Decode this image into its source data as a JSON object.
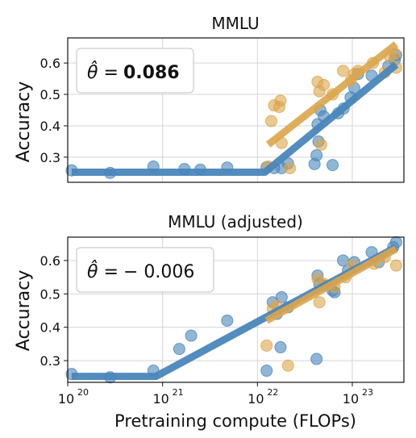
{
  "chart_data": [
    {
      "type": "scatter",
      "title": "MMLU",
      "ylabel": "Accuracy",
      "xscale": "log",
      "xlim": [
        1e+20,
        3.5e+23
      ],
      "ylim": [
        0.22,
        0.68
      ],
      "yticks": [
        "0.3",
        "0.4",
        "0.5",
        "0.6"
      ],
      "ytick_values": [
        0.3,
        0.4,
        0.5,
        0.6
      ],
      "grid": true,
      "annotation": {
        "symbol": "θ̂ =",
        "value": "0.086",
        "bold": true
      },
      "colors": {
        "blue": "#4a86bb",
        "orange": "#dca54b"
      },
      "series": [
        {
          "points": [
            [
              1.1e+20,
              0.258
            ],
            [
              2.8e+20,
              0.25
            ],
            [
              8e+20,
              0.27
            ],
            [
              1.7e+21,
              0.262
            ],
            [
              2.5e+21,
              0.26
            ],
            [
              4.8e+21,
              0.267
            ],
            [
              1.25e+22,
              0.268
            ],
            [
              1.5e+22,
              0.265
            ],
            [
              1.8e+22,
              0.265
            ],
            [
              2.1e+22,
              0.28
            ],
            [
              4e+22,
              0.278
            ],
            [
              4.2e+22,
              0.306
            ],
            [
              4.4e+22,
              0.35
            ],
            [
              4.3e+22,
              0.405
            ],
            [
              4.6e+22,
              0.45
            ],
            [
              5e+22,
              0.43
            ],
            [
              6.2e+22,
              0.275
            ],
            [
              7.1e+22,
              0.44
            ],
            [
              8.1e+22,
              0.455
            ],
            [
              9.6e+22,
              0.49
            ],
            [
              1.05e+23,
              0.52
            ],
            [
              1.15e+23,
              0.565
            ],
            [
              1.6e+23,
              0.56
            ],
            [
              2.4e+23,
              0.59
            ],
            [
              2.8e+23,
              0.61
            ],
            [
              2.9e+23,
              0.625
            ]
          ],
          "fit": [
            [
              1.1e+20,
              0.252
            ],
            [
              1.2e+22,
              0.252
            ],
            [
              2.9e+23,
              0.595
            ]
          ]
        },
        {
          "points": [
            [
              1.4e+22,
              0.415
            ],
            [
              1.5e+22,
              0.465
            ],
            [
              1.7e+22,
              0.46
            ],
            [
              1.75e+22,
              0.48
            ],
            [
              1.8e+22,
              0.345
            ],
            [
              1.3e+22,
              0.27
            ],
            [
              2.2e+22,
              0.265
            ],
            [
              4.3e+22,
              0.54
            ],
            [
              4.5e+22,
              0.51
            ],
            [
              5e+22,
              0.53
            ],
            [
              4.7e+22,
              0.34
            ],
            [
              6.2e+22,
              0.5
            ],
            [
              8e+22,
              0.575
            ],
            [
              9.7e+22,
              0.545
            ],
            [
              1.05e+23,
              0.565
            ],
            [
              1.15e+23,
              0.575
            ],
            [
              1.65e+23,
              0.6
            ],
            [
              2.2e+23,
              0.57
            ],
            [
              2.5e+23,
              0.62
            ],
            [
              2.8e+23,
              0.63
            ],
            [
              2.9e+23,
              0.585
            ]
          ],
          "fit": [
            [
              1.3e+22,
              0.34
            ],
            [
              2.9e+23,
              0.66
            ]
          ]
        }
      ]
    },
    {
      "type": "scatter",
      "title": "MMLU (adjusted)",
      "xlabel": "Pretraining compute (FLOPs)",
      "ylabel": "Accuracy",
      "xscale": "log",
      "xlim": [
        1e+20,
        3.5e+23
      ],
      "ylim": [
        0.235,
        0.67
      ],
      "xticks": [
        "10",
        "10",
        "10",
        "10"
      ],
      "xtick_exponents": [
        "20",
        "21",
        "22",
        "23"
      ],
      "xtick_values": [
        1e+20,
        1e+21,
        1e+22,
        1e+23
      ],
      "yticks": [
        "0.3",
        "0.4",
        "0.5",
        "0.6"
      ],
      "ytick_values": [
        0.3,
        0.4,
        0.5,
        0.6
      ],
      "grid": true,
      "annotation": {
        "symbol": "θ̂ =",
        "value": "− 0.006",
        "bold": false
      },
      "colors": {
        "blue": "#4a86bb",
        "orange": "#dca54b"
      },
      "series": [
        {
          "points": [
            [
              1.1e+20,
              0.26
            ],
            [
              2.8e+20,
              0.25
            ],
            [
              8e+20,
              0.27
            ],
            [
              1.5e+21,
              0.335
            ],
            [
              2e+21,
              0.375
            ],
            [
              4.8e+21,
              0.42
            ],
            [
              1.25e+22,
              0.27
            ],
            [
              1.45e+22,
              0.475
            ],
            [
              1.6e+22,
              0.44
            ],
            [
              1.75e+22,
              0.34
            ],
            [
              1.8e+22,
              0.49
            ],
            [
              2.1e+22,
              0.46
            ],
            [
              4.2e+22,
              0.305
            ],
            [
              4.3e+22,
              0.555
            ],
            [
              4.5e+22,
              0.53
            ],
            [
              5e+22,
              0.525
            ],
            [
              6.2e+22,
              0.51
            ],
            [
              6.5e+22,
              0.505
            ],
            [
              8e+22,
              0.6
            ],
            [
              9e+22,
              0.57
            ],
            [
              1.05e+23,
              0.595
            ],
            [
              1.6e+23,
              0.625
            ],
            [
              1.9e+23,
              0.595
            ],
            [
              2.7e+23,
              0.64
            ],
            [
              2.9e+23,
              0.655
            ]
          ],
          "fit": [
            [
              1.1e+20,
              0.253
            ],
            [
              8.5e+20,
              0.253
            ],
            [
              2.9e+23,
              0.64
            ]
          ]
        },
        {
          "points": [
            [
              1.25e+22,
              0.345
            ],
            [
              1.45e+22,
              0.455
            ],
            [
              1.6e+22,
              0.465
            ],
            [
              2.1e+22,
              0.285
            ],
            [
              4.3e+22,
              0.545
            ],
            [
              4.5e+22,
              0.475
            ],
            [
              5e+22,
              0.53
            ],
            [
              6.5e+22,
              0.52
            ],
            [
              8.5e+22,
              0.55
            ],
            [
              1e+23,
              0.585
            ],
            [
              1.7e+23,
              0.59
            ],
            [
              2.2e+23,
              0.61
            ],
            [
              2.9e+23,
              0.585
            ]
          ],
          "fit": [
            [
              1.25e+22,
              0.42
            ],
            [
              2.9e+23,
              0.635
            ]
          ]
        }
      ]
    }
  ]
}
